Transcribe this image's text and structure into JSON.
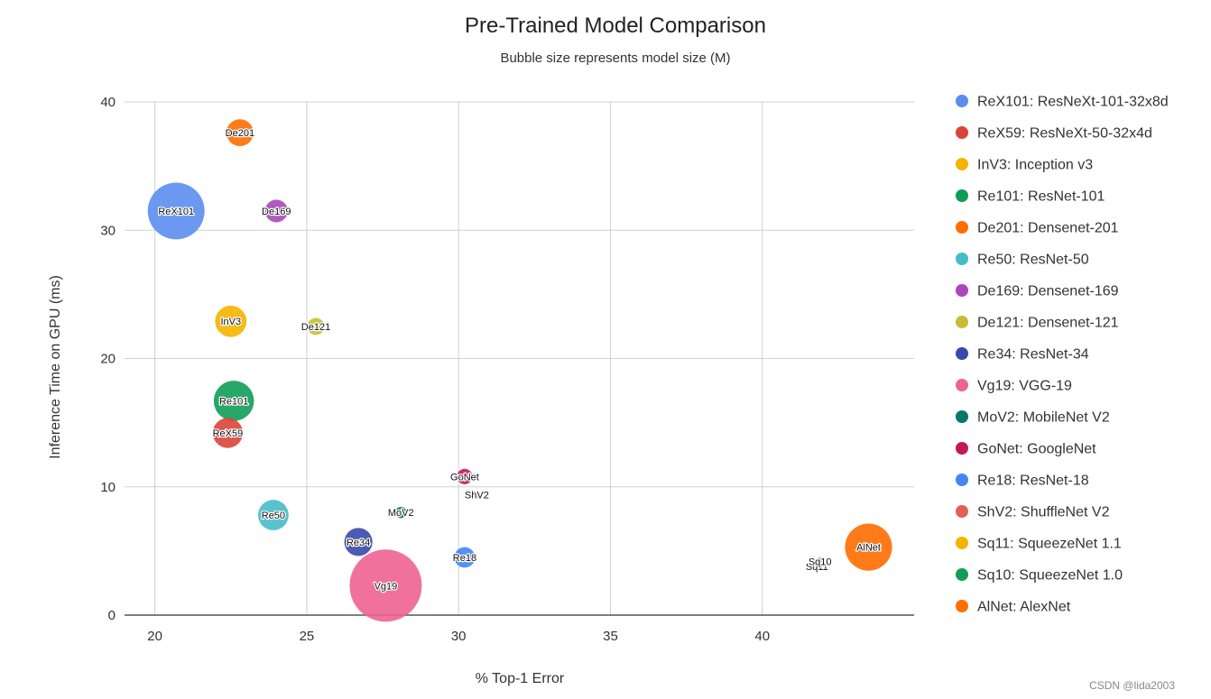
{
  "chart_data": {
    "type": "scatter",
    "title": "Pre-Trained Model Comparison",
    "subtitle": "Bubble size represents model size (M)",
    "xlabel": "% Top-1 Error",
    "ylabel": "Inference Time on GPU (ms)",
    "xlim": [
      19,
      45
    ],
    "ylim": [
      0,
      40
    ],
    "xticks": [
      20,
      25,
      30,
      35,
      40
    ],
    "yticks": [
      0,
      10,
      20,
      30,
      40
    ],
    "grid": true,
    "legend_position": "right",
    "points": [
      {
        "label": "ReX101",
        "name": "ReX101: ResNeXt-101-32x8d",
        "x": 20.7,
        "y": 31.5,
        "size": 88.8,
        "color": "#5b8def"
      },
      {
        "label": "ReX59",
        "name": "ReX59: ResNeXt-50-32x4d",
        "x": 22.4,
        "y": 14.2,
        "size": 25.0,
        "color": "#db4437"
      },
      {
        "label": "InV3",
        "name": "InV3: Inception v3",
        "x": 22.5,
        "y": 22.9,
        "size": 27.2,
        "color": "#f4b400"
      },
      {
        "label": "Re101",
        "name": "Re101: ResNet-101",
        "x": 22.6,
        "y": 16.7,
        "size": 44.5,
        "color": "#0f9d58"
      },
      {
        "label": "De201",
        "name": "De201: Densenet-201",
        "x": 22.8,
        "y": 37.6,
        "size": 20.0,
        "color": "#ff6d00"
      },
      {
        "label": "Re50",
        "name": "Re50: ResNet-50",
        "x": 23.9,
        "y": 7.8,
        "size": 25.6,
        "color": "#46bdc6"
      },
      {
        "label": "De169",
        "name": "De169: Densenet-169",
        "x": 24.0,
        "y": 31.5,
        "size": 14.1,
        "color": "#ab47bc"
      },
      {
        "label": "De121",
        "name": "De121: Densenet-121",
        "x": 25.3,
        "y": 22.5,
        "size": 8.0,
        "color": "#c6bd34"
      },
      {
        "label": "Re34",
        "name": "Re34: ResNet-34",
        "x": 26.7,
        "y": 5.7,
        "size": 21.8,
        "color": "#3949ab"
      },
      {
        "label": "Vg19",
        "name": "Vg19: VGG-19",
        "x": 27.6,
        "y": 2.3,
        "size": 143.7,
        "color": "#f06292"
      },
      {
        "label": "MoV2",
        "name": "MoV2: MobileNet V2",
        "x": 28.1,
        "y": 8.0,
        "size": 3.5,
        "color": "#00796b"
      },
      {
        "label": "GoNet",
        "name": "GoNet: GoogleNet",
        "x": 30.2,
        "y": 10.8,
        "size": 6.6,
        "color": "#c2185b"
      },
      {
        "label": "Re18",
        "name": "Re18: ResNet-18",
        "x": 30.2,
        "y": 4.5,
        "size": 11.7,
        "color": "#4285f4"
      },
      {
        "label": "ShV2",
        "name": "ShV2: ShuffleNet V2",
        "x": 30.6,
        "y": 9.4,
        "size": 1.4,
        "color": "#e06055"
      },
      {
        "label": "Sq11",
        "name": "Sq11: SqueezeNet 1.1",
        "x": 41.8,
        "y": 3.8,
        "size": 1.2,
        "color": "#f4b400"
      },
      {
        "label": "Sq10",
        "name": "Sq10: SqueezeNet 1.0",
        "x": 41.9,
        "y": 4.2,
        "size": 1.2,
        "color": "#0f9d58"
      },
      {
        "label": "AlNet",
        "name": "AlNet: AlexNet",
        "x": 43.5,
        "y": 5.3,
        "size": 61.1,
        "color": "#ff6d00"
      }
    ]
  },
  "watermark": "CSDN @lida2003"
}
